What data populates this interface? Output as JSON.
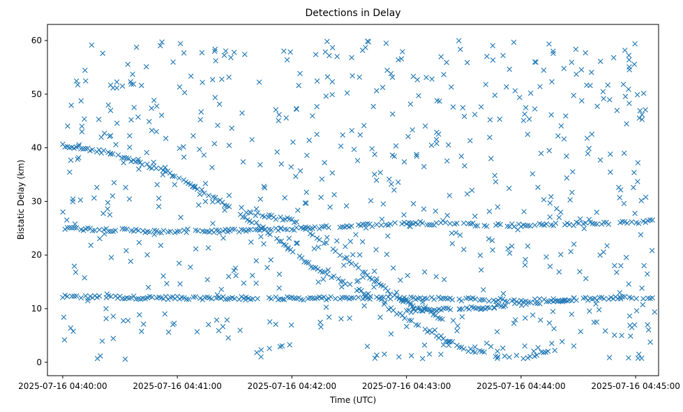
{
  "chart_data": {
    "type": "scatter",
    "title": "Detections in Delay",
    "xlabel": "Time (UTC)",
    "ylabel": "Bistatic Delay (km)",
    "marker": "x",
    "color": "#1f77b4",
    "grid": false,
    "legend": "none",
    "x_unit": "time",
    "xlim": [
      "2025-07-16 04:39:52",
      "2025-07-16 04:45:12"
    ],
    "ylim": [
      -2.5,
      63
    ],
    "x_ticks": [
      {
        "value": "2025-07-16 04:40:00",
        "label": "2025-07-16 04:40:00"
      },
      {
        "value": "2025-07-16 04:41:00",
        "label": "2025-07-16 04:41:00"
      },
      {
        "value": "2025-07-16 04:42:00",
        "label": "2025-07-16 04:42:00"
      },
      {
        "value": "2025-07-16 04:43:00",
        "label": "2025-07-16 04:43:00"
      },
      {
        "value": "2025-07-16 04:44:00",
        "label": "2025-07-16 04:44:00"
      },
      {
        "value": "2025-07-16 04:45:00",
        "label": "2025-07-16 04:45:00"
      }
    ],
    "y_ticks": [
      0,
      10,
      20,
      30,
      40,
      50,
      60
    ],
    "tracks": [
      {
        "description_ref": "steady near 12 km",
        "points": [
          [
            "04:40:00",
            12.2
          ],
          [
            "04:41:00",
            12.0
          ],
          [
            "04:42:00",
            11.9
          ],
          [
            "04:43:00",
            12.0
          ],
          [
            "04:44:00",
            11.5
          ],
          [
            "04:45:10",
            12.1
          ]
        ]
      },
      {
        "description_ref": "steady near 24-26 km",
        "points": [
          [
            "04:40:00",
            25.0
          ],
          [
            "04:41:00",
            24.3
          ],
          [
            "04:42:00",
            24.8
          ],
          [
            "04:43:00",
            26.0
          ],
          [
            "04:44:00",
            25.5
          ],
          [
            "04:45:10",
            26.3
          ]
        ]
      },
      {
        "description_ref": "descending from 40 km",
        "points": [
          [
            "04:40:00",
            40.5
          ],
          [
            "04:40:25",
            39.0
          ],
          [
            "04:40:55",
            35.5
          ],
          [
            "04:41:20",
            30.5
          ],
          [
            "04:41:45",
            25.0
          ],
          [
            "04:42:10",
            18.0
          ],
          [
            "04:42:40",
            12.5
          ],
          [
            "04:43:05",
            7.0
          ],
          [
            "04:43:30",
            2.5
          ],
          [
            "04:43:55",
            0.7
          ]
        ]
      },
      {
        "description_ref": "rising after minimum",
        "points": [
          [
            "04:44:00",
            0.8
          ],
          [
            "04:44:20",
            2.5
          ]
        ]
      },
      {
        "description_ref": "diagonal 28 to 8 km",
        "points": [
          [
            "04:41:35",
            28.0
          ],
          [
            "04:42:00",
            26.5
          ],
          [
            "04:42:30",
            19.0
          ],
          [
            "04:42:55",
            12.0
          ],
          [
            "04:43:20",
            8.0
          ]
        ]
      },
      {
        "description_ref": "rising 10 to 12 km",
        "points": [
          [
            "04:43:00",
            9.5
          ],
          [
            "04:43:40",
            10.2
          ],
          [
            "04:44:30",
            11.8
          ]
        ]
      }
    ],
    "clutter": {
      "count": 650,
      "x_range": [
        "04:40:00",
        "04:45:10"
      ],
      "y_range": [
        0.5,
        60
      ]
    }
  }
}
